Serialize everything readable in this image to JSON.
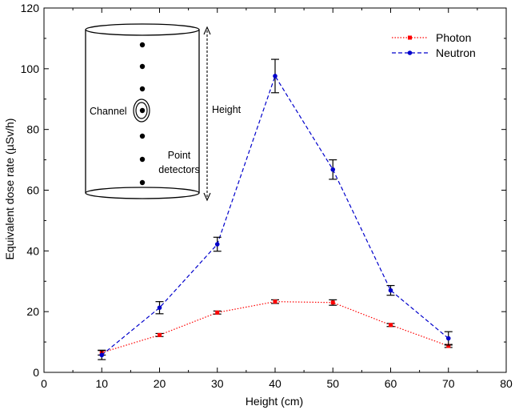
{
  "chart_data": {
    "type": "line",
    "xlabel": "Height (cm)",
    "ylabel": "Equivalent dose rate (µSv/h)",
    "xlim": [
      0,
      80
    ],
    "ylim": [
      0,
      120
    ],
    "x_ticks": [
      0,
      10,
      20,
      30,
      40,
      50,
      60,
      70,
      80
    ],
    "y_ticks": [
      0,
      20,
      40,
      60,
      80,
      100,
      120
    ],
    "x_tick_labels": [
      "0",
      "10",
      "20",
      "30",
      "40",
      "50",
      "60",
      "70",
      "80"
    ],
    "y_tick_labels": [
      "0",
      "20",
      "40",
      "60",
      "80",
      "100",
      "120"
    ],
    "grid": false,
    "legend_position": "top-right",
    "x": [
      10,
      20,
      30,
      40,
      50,
      60,
      70
    ],
    "series": [
      {
        "name": "Photon",
        "color": "#ff0000",
        "line_style": "dotted",
        "marker": "square",
        "values": [
          6.5,
          12.3,
          19.7,
          23.3,
          23.0,
          15.6,
          8.7
        ],
        "errors": [
          0.8,
          0.5,
          0.5,
          0.6,
          0.9,
          0.5,
          0.5
        ]
      },
      {
        "name": "Neutron",
        "color": "#0000cc",
        "line_style": "dashed",
        "marker": "circle",
        "values": [
          5.7,
          21.3,
          42.2,
          97.6,
          66.8,
          27.0,
          11.2
        ],
        "errors": [
          1.5,
          2.0,
          2.3,
          5.5,
          3.2,
          1.6,
          2.2
        ]
      }
    ]
  },
  "inset": {
    "channel_label": "Channel",
    "height_label": "Height",
    "detectors_label_line1": "Point",
    "detectors_label_line2": "detectors"
  }
}
